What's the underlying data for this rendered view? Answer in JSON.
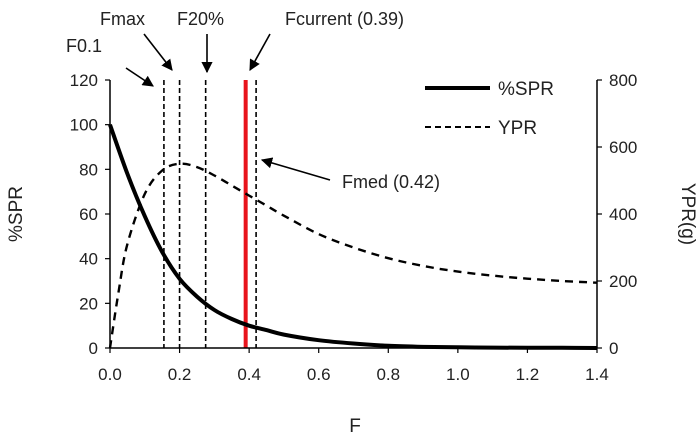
{
  "chart_data": {
    "type": "line",
    "xlabel": "F",
    "ylabel_left": "%SPR",
    "ylabel_right": "YPR(g)",
    "xlim": [
      0,
      1.4
    ],
    "ylim_left": [
      0,
      120
    ],
    "ylim_right": [
      0,
      800
    ],
    "x_ticks": [
      "0.0",
      "0.2",
      "0.4",
      "0.6",
      "0.8",
      "1.0",
      "1.2",
      "1.4"
    ],
    "y_left_ticks": [
      "0",
      "20",
      "40",
      "60",
      "80",
      "100",
      "120"
    ],
    "y_right_ticks": [
      "0",
      "200",
      "400",
      "600",
      "800"
    ],
    "grid": false,
    "legend_position": "top-right",
    "series": [
      {
        "name": "%SPR",
        "axis": "left",
        "style": "solid",
        "color": "#000000",
        "x": [
          0.0,
          0.05,
          0.1,
          0.15,
          0.2,
          0.25,
          0.3,
          0.35,
          0.4,
          0.45,
          0.5,
          0.6,
          0.7,
          0.8,
          0.9,
          1.0,
          1.1,
          1.2,
          1.3,
          1.4
        ],
        "values": [
          100,
          78,
          59,
          43,
          31,
          23,
          17,
          13,
          10,
          8,
          6,
          3.5,
          2,
          1,
          0.5,
          0.3,
          0.2,
          0.1,
          0.1,
          0
        ]
      },
      {
        "name": "YPR",
        "axis": "right",
        "style": "dashed",
        "color": "#000000",
        "x": [
          0.0,
          0.025,
          0.05,
          0.1,
          0.15,
          0.2,
          0.25,
          0.3,
          0.35,
          0.4,
          0.45,
          0.5,
          0.6,
          0.7,
          0.8,
          0.9,
          1.0,
          1.1,
          1.2,
          1.3,
          1.4
        ],
        "values": [
          0,
          170,
          310,
          460,
          530,
          550,
          540,
          515,
          485,
          455,
          425,
          395,
          340,
          300,
          268,
          245,
          228,
          216,
          207,
          200,
          195
        ]
      }
    ],
    "reference_lines": [
      {
        "label": "F0.1",
        "x": 0.155,
        "style": "dashed",
        "color": "#000000"
      },
      {
        "label": "Fmax",
        "x": 0.2,
        "style": "dashed",
        "color": "#000000"
      },
      {
        "label": "F20%",
        "x": 0.275,
        "style": "dashed",
        "color": "#000000"
      },
      {
        "label": "Fcurrent (0.39)",
        "x": 0.39,
        "style": "solid",
        "color": "#e8141c"
      },
      {
        "label": "Fmed (0.42)",
        "x": 0.42,
        "style": "dashed",
        "color": "#000000"
      }
    ]
  }
}
